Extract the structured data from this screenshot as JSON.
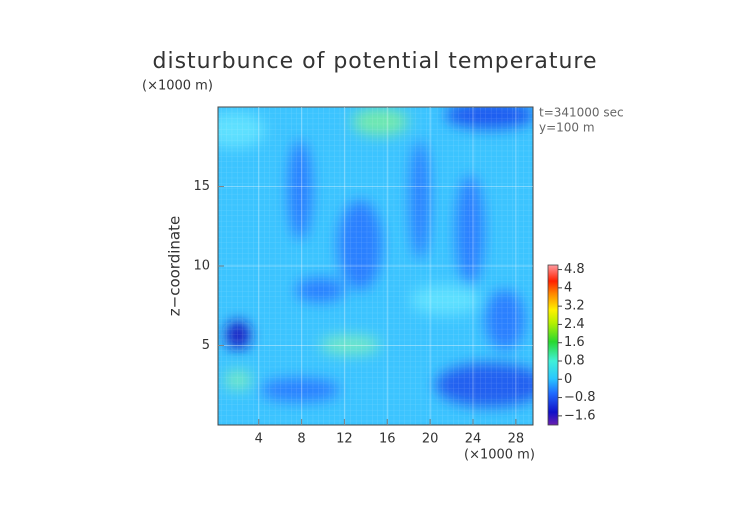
{
  "chart_data": {
    "type": "contour",
    "title": "disturbunce of potential temperature",
    "x_unit_label": "(×1000 m)",
    "y_unit_label": "(×1000 m)",
    "ylabel": "z−coordinate",
    "annotations": [
      "t=341000 sec",
      "y=100 m"
    ],
    "xlim": [
      0.2,
      29.6
    ],
    "xticks": [
      4,
      8,
      12,
      16,
      20,
      24,
      28
    ],
    "ylim": [
      0,
      20
    ],
    "yticks": [
      5,
      10,
      15
    ],
    "colorbar_lim": [
      -2,
      5
    ],
    "colorbar_ticks": [
      4.8,
      4,
      3.2,
      2.4,
      1.6,
      0.8,
      0,
      {
        "value": -0.8,
        "label": "−0.8"
      },
      {
        "value": -1.6,
        "label": "−1.6"
      }
    ],
    "grid": true
  }
}
